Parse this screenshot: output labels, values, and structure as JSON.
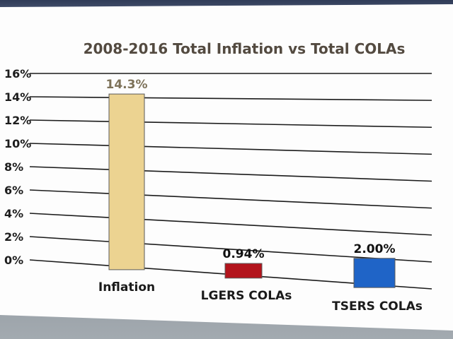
{
  "chart_data": {
    "type": "bar",
    "title": "2008-2016 Total Inflation vs Total COLAs",
    "categories": [
      "Inflation",
      "LGERS COLAs",
      "TSERS COLAs"
    ],
    "values": [
      14.3,
      0.94,
      2.0
    ],
    "data_labels": [
      "14.3%",
      "0.94%",
      "2.00%"
    ],
    "colors": [
      "#ecd391",
      "#b3141c",
      "#1f64c7"
    ],
    "data_label_colors": [
      "#7d7259",
      "#111111",
      "#111111"
    ],
    "ylim": [
      0,
      16
    ],
    "yticks": [
      "0%",
      "2%",
      "4%",
      "6%",
      "8%",
      "10%",
      "12%",
      "14%",
      "16%"
    ],
    "grid": true,
    "legend": false
  }
}
